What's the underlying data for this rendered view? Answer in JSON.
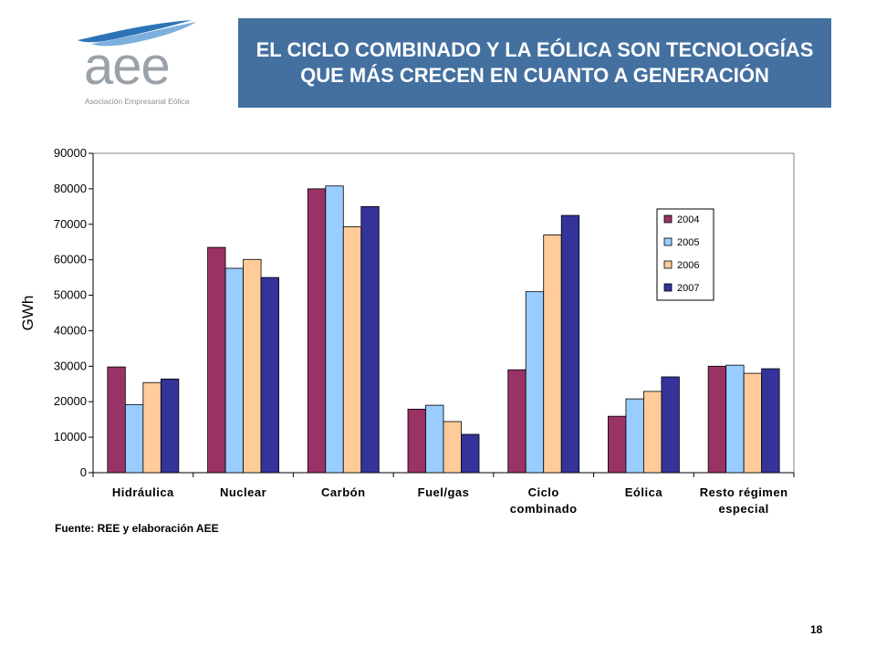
{
  "logo": {
    "text": "aee",
    "subtitle": "Asociación Empresarial Eólica",
    "icon": "swoosh-logo-icon"
  },
  "slide": {
    "title": "EL CICLO COMBINADO Y LA EÓLICA SON TECNOLOGÍAS QUE MÁS CRECEN EN CUANTO A GENERACIÓN",
    "source": "Fuente: REE y elaboración AEE",
    "page_number": "18"
  },
  "colors": {
    "title_bg": "#4470a0",
    "s2004": "#993366",
    "s2005": "#99ccff",
    "s2006": "#ffcc99",
    "s2007": "#333399"
  },
  "chart_data": {
    "type": "bar",
    "title": "",
    "ylabel": "GWh",
    "xlabel": "",
    "ylim": [
      0,
      90000
    ],
    "yticks": [
      0,
      10000,
      20000,
      30000,
      40000,
      50000,
      60000,
      70000,
      80000,
      90000
    ],
    "grid": false,
    "legend_position": "right",
    "categories": [
      "Hidráulica",
      "Nuclear",
      "Carbón",
      "Fuel/gas",
      "Ciclo combinado",
      "Eólica",
      "Resto régimen especial"
    ],
    "category_lines": [
      [
        "Hidráulica"
      ],
      [
        "Nuclear"
      ],
      [
        "Carbón"
      ],
      [
        "Fuel/gas"
      ],
      [
        "Ciclo",
        "combinado"
      ],
      [
        "Eólica"
      ],
      [
        "Resto régimen",
        "especial"
      ]
    ],
    "series": [
      {
        "name": "2004",
        "color": "#993366",
        "values": [
          29800,
          63500,
          80000,
          17900,
          29000,
          15900,
          30000
        ]
      },
      {
        "name": "2005",
        "color": "#99ccff",
        "values": [
          19200,
          57600,
          80800,
          19000,
          51000,
          20800,
          30300
        ]
      },
      {
        "name": "2006",
        "color": "#ffcc99",
        "values": [
          25400,
          60100,
          69300,
          14400,
          67000,
          22900,
          28000
        ]
      },
      {
        "name": "2007",
        "color": "#333399",
        "values": [
          26400,
          55000,
          75000,
          10800,
          72500,
          27000,
          29300
        ]
      }
    ]
  }
}
